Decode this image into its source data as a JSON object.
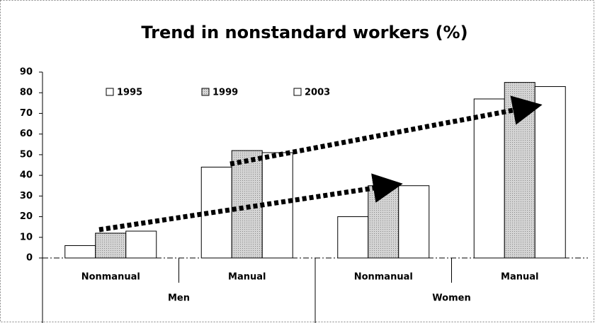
{
  "chart_data": {
    "type": "bar",
    "title": "Trend in nonstandard workers (%)",
    "categories": [
      "Nonmanual",
      "Manual",
      "Nonmanual",
      "Manual"
    ],
    "groups": [
      "Men",
      "Women"
    ],
    "series": [
      {
        "name": "1995",
        "color": "#ffffff",
        "values": [
          6,
          44,
          20,
          77
        ]
      },
      {
        "name": "1999",
        "color": "#c8c8c8",
        "values": [
          12,
          52,
          35,
          85
        ]
      },
      {
        "name": "2003",
        "color": "#ffffff",
        "values": [
          13,
          51,
          35,
          83
        ]
      }
    ],
    "ylim": [
      0,
      90
    ],
    "yticks": [
      0,
      10,
      20,
      30,
      40,
      50,
      60,
      70,
      80,
      90
    ],
    "grid": false
  }
}
